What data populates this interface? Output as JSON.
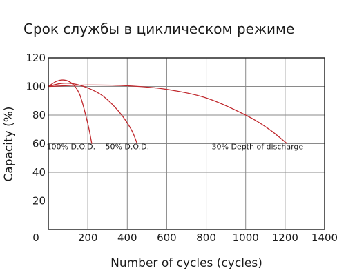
{
  "chart_data": {
    "type": "line",
    "title": "Срок службы в циклическом режиме",
    "xlabel": "Number of cycles (cycles)",
    "ylabel": "Capacity (%)",
    "xlim": [
      0,
      1400
    ],
    "ylim": [
      0,
      120
    ],
    "xticks": [
      "0",
      "200",
      "400",
      "600",
      "800",
      "1000",
      "1200",
      "1400"
    ],
    "yticks": [
      "20",
      "40",
      "60",
      "80",
      "100",
      "120"
    ],
    "grid": true,
    "line_color": "#c0282d",
    "series": [
      {
        "name": "100% D.O.D.",
        "x": [
          0,
          40,
          80,
          120,
          160,
          200,
          220
        ],
        "y": [
          100,
          103.5,
          104.5,
          102,
          94,
          74,
          60
        ]
      },
      {
        "name": "50% D.O.D.",
        "x": [
          0,
          60,
          120,
          200,
          280,
          360,
          420,
          450
        ],
        "y": [
          100,
          102,
          102,
          99,
          93,
          82,
          70,
          60
        ]
      },
      {
        "name": "30% Depth of discharge",
        "x": [
          0,
          200,
          400,
          600,
          800,
          1000,
          1120,
          1210
        ],
        "y": [
          100,
          101,
          100.5,
          98,
          92,
          80,
          70,
          60
        ]
      }
    ],
    "annotations": [
      {
        "text": "100% D.O.D.",
        "x": 115,
        "y": 58
      },
      {
        "text": "50% D.O.D.",
        "x": 400,
        "y": 58
      },
      {
        "text": "30% Depth of discharge",
        "x": 1060,
        "y": 58
      }
    ]
  }
}
